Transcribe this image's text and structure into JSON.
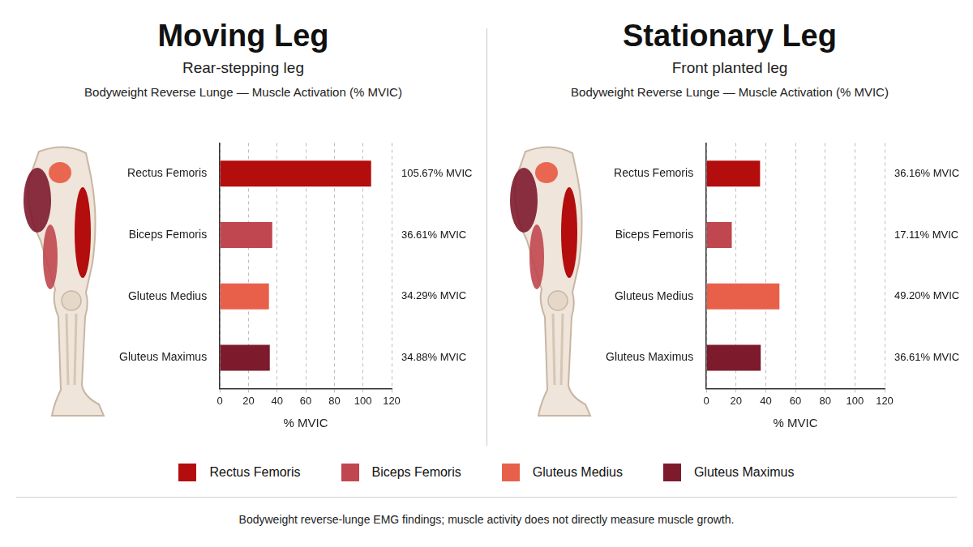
{
  "chart_data": [
    {
      "type": "bar",
      "orientation": "horizontal",
      "title": "Moving Leg",
      "subtitle": "Rear-stepping leg",
      "description": "Bodyweight Reverse Lunge — Muscle Activation (% MVIC)",
      "categories": [
        "Rectus Femoris",
        "Biceps Femoris",
        "Gluteus Medius",
        "Gluteus Maximus"
      ],
      "values": [
        105.67,
        36.61,
        34.29,
        34.88
      ],
      "value_labels": [
        "105.67% MVIC",
        "36.61% MVIC",
        "34.29% MVIC",
        "34.88% MVIC"
      ],
      "colors": [
        "#b30d0d",
        "#c0474f",
        "#e8604a",
        "#7d1a2c"
      ],
      "xlabel": "% MVIC",
      "xlim": [
        0,
        120
      ],
      "xticks": [
        0,
        20,
        40,
        60,
        80,
        100,
        120
      ],
      "grid": true,
      "data_labels": true
    },
    {
      "type": "bar",
      "orientation": "horizontal",
      "title": "Stationary Leg",
      "subtitle": "Front planted leg",
      "description": "Bodyweight Reverse Lunge — Muscle Activation (% MVIC)",
      "categories": [
        "Rectus Femoris",
        "Biceps Femoris",
        "Gluteus Medius",
        "Gluteus Maximus"
      ],
      "values": [
        36.16,
        17.11,
        49.2,
        36.61
      ],
      "value_labels": [
        "36.16% MVIC",
        "17.11% MVIC",
        "49.20% MVIC",
        "36.61% MVIC"
      ],
      "colors": [
        "#b30d0d",
        "#c0474f",
        "#e8604a",
        "#7d1a2c"
      ],
      "xlabel": "% MVIC",
      "xlim": [
        0,
        120
      ],
      "xticks": [
        0,
        20,
        40,
        60,
        80,
        100,
        120
      ],
      "grid": true,
      "data_labels": true
    }
  ],
  "shared_legend": {
    "position": "bottom",
    "series": [
      {
        "name": "Rectus Femoris",
        "color": "#b30d0d"
      },
      {
        "name": "Biceps Femoris",
        "color": "#c0474f"
      },
      {
        "name": "Gluteus Medius",
        "color": "#e8604a"
      },
      {
        "name": "Gluteus Maximus",
        "color": "#7d1a2c"
      }
    ]
  },
  "footnote": "Bodyweight reverse-lunge EMG findings; muscle activity does not directly measure muscle growth."
}
